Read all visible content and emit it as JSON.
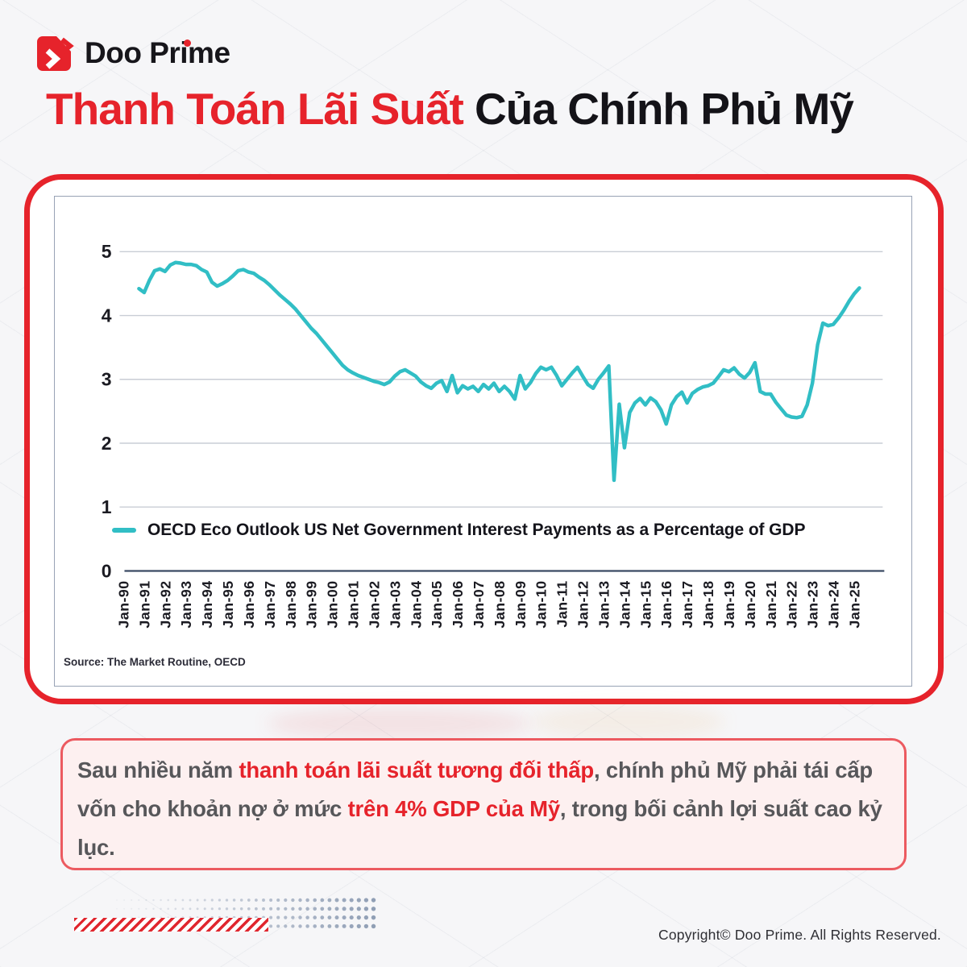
{
  "brand": {
    "name": "Doo Prime"
  },
  "title": {
    "highlight": "Thanh Toán Lãi Suất",
    "rest": " Của Chính Phủ Mỹ"
  },
  "chart_data": {
    "type": "line",
    "title": "",
    "xlabel": "",
    "ylabel": "",
    "ylim": [
      0,
      5.6
    ],
    "grid": true,
    "legend_position": "inside-bottom-left",
    "y_ticks": [
      0,
      1,
      2,
      3,
      4,
      5
    ],
    "x_ticks": [
      "Jan-90",
      "Jan-91",
      "Jan-92",
      "Jan-93",
      "Jan-94",
      "Jan-95",
      "Jan-96",
      "Jan-97",
      "Jan-98",
      "Jan-99",
      "Jan-00",
      "Jan-01",
      "Jan-02",
      "Jan-03",
      "Jan-04",
      "Jan-05",
      "Jan-06",
      "Jan-07",
      "Jan-08",
      "Jan-09",
      "Jan-10",
      "Jan-11",
      "Jan-12",
      "Jan-13",
      "Jan-14",
      "Jan-15",
      "Jan-16",
      "Jan-17",
      "Jan-18",
      "Jan-19",
      "Jan-20",
      "Jan-21",
      "Jan-22",
      "Jan-23",
      "Jan-24",
      "Jan-25"
    ],
    "x_tick_start_year": 1990,
    "series": [
      {
        "name": "OECD Eco Outlook US Net Government Interest Payments as a Percentage of GDP",
        "color": "#31bec5",
        "x_start": 1990.5,
        "x_step": 0.25,
        "values": [
          4.42,
          4.36,
          4.55,
          4.7,
          4.73,
          4.69,
          4.79,
          4.83,
          4.82,
          4.8,
          4.8,
          4.78,
          4.72,
          4.68,
          4.52,
          4.46,
          4.5,
          4.55,
          4.62,
          4.7,
          4.72,
          4.68,
          4.66,
          4.6,
          4.55,
          4.48,
          4.4,
          4.32,
          4.25,
          4.18,
          4.1,
          4.0,
          3.9,
          3.8,
          3.72,
          3.62,
          3.52,
          3.42,
          3.32,
          3.22,
          3.15,
          3.1,
          3.06,
          3.03,
          3.0,
          2.97,
          2.95,
          2.92,
          2.96,
          3.05,
          3.12,
          3.15,
          3.1,
          3.05,
          2.96,
          2.9,
          2.86,
          2.94,
          2.98,
          2.81,
          3.06,
          2.79,
          2.9,
          2.85,
          2.89,
          2.81,
          2.92,
          2.85,
          2.94,
          2.81,
          2.89,
          2.81,
          2.69,
          3.06,
          2.85,
          2.95,
          3.09,
          3.19,
          3.15,
          3.19,
          3.06,
          2.9,
          3.0,
          3.1,
          3.19,
          3.05,
          2.92,
          2.86,
          3.0,
          3.1,
          3.21,
          1.42,
          2.61,
          1.93,
          2.48,
          2.63,
          2.7,
          2.6,
          2.71,
          2.65,
          2.52,
          2.3,
          2.6,
          2.73,
          2.8,
          2.63,
          2.78,
          2.84,
          2.88,
          2.9,
          2.94,
          3.04,
          3.15,
          3.12,
          3.18,
          3.08,
          3.02,
          3.11,
          3.26,
          2.81,
          2.77,
          2.77,
          2.64,
          2.54,
          2.44,
          2.41,
          2.4,
          2.42,
          2.6,
          2.94,
          3.54,
          3.88,
          3.84,
          3.86,
          3.96,
          4.08,
          4.22,
          4.34,
          4.43
        ]
      }
    ],
    "source": "Source: The Market Routine, OECD"
  },
  "caption": {
    "segments": [
      {
        "text": "Sau nhiều năm ",
        "style": "body"
      },
      {
        "text": "thanh toán lãi suất tương đối thấp",
        "style": "accent"
      },
      {
        "text": ", chính phủ Mỹ phải tái cấp vốn cho khoản nợ ở mức ",
        "style": "body"
      },
      {
        "text": "trên 4% GDP của Mỹ",
        "style": "accent"
      },
      {
        "text": ", trong bối cảnh lợi suất cao kỷ lục.",
        "style": "body"
      }
    ]
  },
  "footer": {
    "copyright": "Copyright© Doo Prime. All Rights Reserved."
  },
  "colors": {
    "accent_red": "#e6232b",
    "line_teal": "#31bec5",
    "caption_text": "#57575a",
    "caption_bg": "#fdf0f0",
    "caption_border": "#ec5a60",
    "dots_slate": "#7e8fa9"
  }
}
